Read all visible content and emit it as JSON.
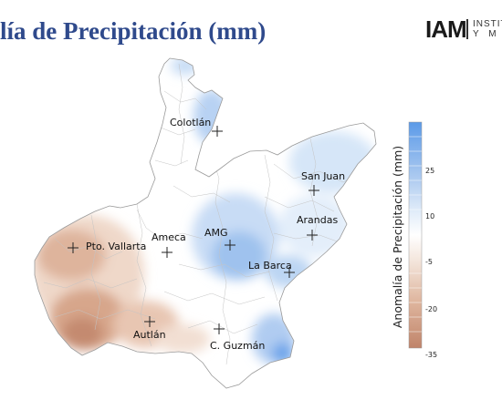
{
  "header": {
    "title": "lía de Precipitación (mm)",
    "logo_mark": "IAM",
    "logo_line1": "INSTITU",
    "logo_line2": "Y M"
  },
  "cities": [
    {
      "name": "Colotlán"
    },
    {
      "name": "San Juan"
    },
    {
      "name": "Arandas"
    },
    {
      "name": "AMG"
    },
    {
      "name": "Ameca"
    },
    {
      "name": "Pto. Vallarta"
    },
    {
      "name": "La Barca"
    },
    {
      "name": "Autlán"
    },
    {
      "name": "C. Guzmán"
    }
  ],
  "colorbar": {
    "title": "Anomalía de Precipitación (mm)",
    "ticks": [
      "25",
      "10",
      "-5",
      "-20",
      "-35"
    ],
    "colors": {
      "positive_strong": "#5b9ae8",
      "positive_light": "#dce9f8",
      "neutral": "#ffffff",
      "negative_light": "#f3e4da",
      "negative_strong": "#c0846a"
    }
  }
}
